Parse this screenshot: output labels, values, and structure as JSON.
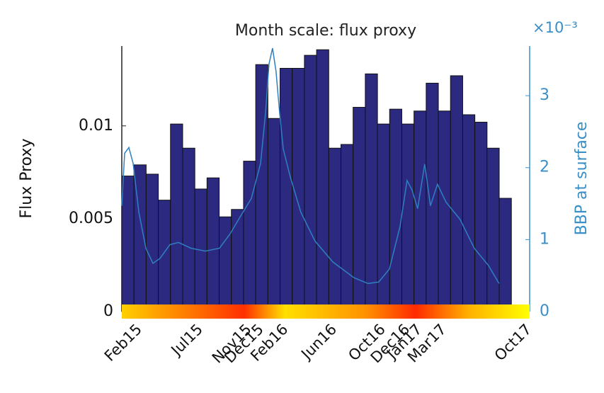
{
  "chart_data": {
    "type": "bar",
    "title": "Month scale: flux proxy",
    "ylabel": "Flux Proxy",
    "y2label": "BBP at surface",
    "y2_multiplier": "×10⁻³",
    "xlim": [
      0,
      33.5
    ],
    "xticks": [
      {
        "value": 1,
        "label": "Feb15"
      },
      {
        "value": 6,
        "label": "Jul15"
      },
      {
        "value": 10,
        "label": "Nov15"
      },
      {
        "value": 11,
        "label": "Dec15"
      },
      {
        "value": 13,
        "label": "Feb16"
      },
      {
        "value": 17,
        "label": "Jun16"
      },
      {
        "value": 21,
        "label": "Oct16"
      },
      {
        "value": 23,
        "label": "Dec16"
      },
      {
        "value": 24,
        "label": "Jan17"
      },
      {
        "value": 26,
        "label": "Mar17"
      },
      {
        "value": 33,
        "label": "Oct17"
      }
    ],
    "ylim": [
      0,
      0.0143
    ],
    "yticks": [
      0,
      0.005,
      0.01
    ],
    "y2lim": [
      0,
      3.69
    ],
    "y2ticks": [
      0,
      1,
      2,
      3
    ],
    "series": [
      {
        "type": "bar",
        "color": "#2b2a80",
        "x": [
          0.5,
          1.5,
          2.5,
          3.5,
          4.5,
          5.5,
          6.5,
          7.5,
          8.5,
          9.5,
          10.5,
          11.5,
          12.5,
          13.5,
          14.5,
          15.5,
          16.5,
          17.5,
          18.5,
          19.5,
          20.5,
          21.5,
          22.5,
          23.5,
          24.5,
          25.5,
          26.5,
          27.5,
          28.5,
          29.5,
          30.5,
          31.5
        ],
        "values": [
          0.0073,
          0.0079,
          0.0074,
          0.006,
          0.0101,
          0.0088,
          0.0066,
          0.0072,
          0.0051,
          0.0055,
          0.0081,
          0.0133,
          0.0104,
          0.0131,
          0.0131,
          0.0138,
          0.0141,
          0.0088,
          0.009,
          0.011,
          0.0128,
          0.0101,
          0.0109,
          0.0101,
          0.0108,
          0.0123,
          0.0108,
          0.0127,
          0.0106,
          0.0102,
          0.0088,
          0.0061
        ]
      },
      {
        "type": "line",
        "axis": "y2",
        "color": "#2f7fc1",
        "x": [
          0,
          0.23,
          0.58,
          0.93,
          1.4,
          1.98,
          2.56,
          3.14,
          3.95,
          4.65,
          5.7,
          6.86,
          8.02,
          8.9,
          9.77,
          10.64,
          11.4,
          11.8,
          12.09,
          12.38,
          12.67,
          12.97,
          13.26,
          13.84,
          14.71,
          15.87,
          17.33,
          19.07,
          20.23,
          21.1,
          21.98,
          22.85,
          23.43,
          23.84,
          24.3,
          24.88,
          25.35,
          25.93,
          26.63,
          27.79,
          28.95,
          30.12,
          30.99
        ],
        "values": [
          1.47,
          2.2,
          2.28,
          2.06,
          1.38,
          0.88,
          0.67,
          0.74,
          0.93,
          0.96,
          0.88,
          0.84,
          0.88,
          1.08,
          1.33,
          1.57,
          2.06,
          2.75,
          3.44,
          3.66,
          3.34,
          2.75,
          2.26,
          1.87,
          1.38,
          0.98,
          0.69,
          0.47,
          0.39,
          0.41,
          0.59,
          1.18,
          1.82,
          1.69,
          1.43,
          2.05,
          1.47,
          1.77,
          1.52,
          1.28,
          0.88,
          0.64,
          0.39
        ]
      }
    ]
  }
}
